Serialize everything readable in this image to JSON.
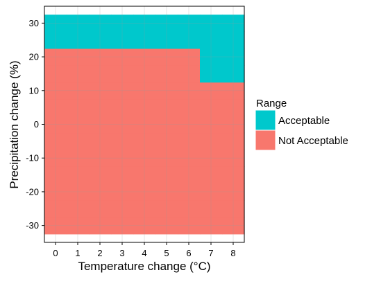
{
  "chart_data": {
    "type": "heatmap",
    "xlabel": "Temperature change (°C)",
    "ylabel": "Precipitation change (%)",
    "x": [
      0,
      1,
      2,
      3,
      4,
      5,
      6,
      7,
      8
    ],
    "y": [
      -30,
      -25,
      -20,
      -15,
      -10,
      -5,
      0,
      5,
      10,
      15,
      20,
      25,
      30
    ],
    "xlim": [
      -0.5,
      8.5
    ],
    "ylim": [
      -35,
      35
    ],
    "x_ticks": [
      0,
      1,
      2,
      3,
      4,
      5,
      6,
      7,
      8
    ],
    "y_ticks": [
      -30,
      -20,
      -10,
      0,
      10,
      20,
      30
    ],
    "categories": [
      "Acceptable",
      "Not Acceptable"
    ],
    "colors": {
      "Acceptable": "#00C8CC",
      "Not Acceptable": "#F8776D"
    },
    "acceptable_threshold": [
      {
        "x": 0,
        "min_precip_acceptable": 25
      },
      {
        "x": 1,
        "min_precip_acceptable": 25
      },
      {
        "x": 2,
        "min_precip_acceptable": 25
      },
      {
        "x": 3,
        "min_precip_acceptable": 25
      },
      {
        "x": 4,
        "min_precip_acceptable": 25
      },
      {
        "x": 5,
        "min_precip_acceptable": 25
      },
      {
        "x": 6,
        "min_precip_acceptable": 25
      },
      {
        "x": 7,
        "min_precip_acceptable": 15
      },
      {
        "x": 8,
        "min_precip_acceptable": 15
      }
    ],
    "legend": {
      "title": "Range",
      "entries": [
        "Acceptable",
        "Not Acceptable"
      ],
      "position": "right"
    },
    "grid": true
  }
}
